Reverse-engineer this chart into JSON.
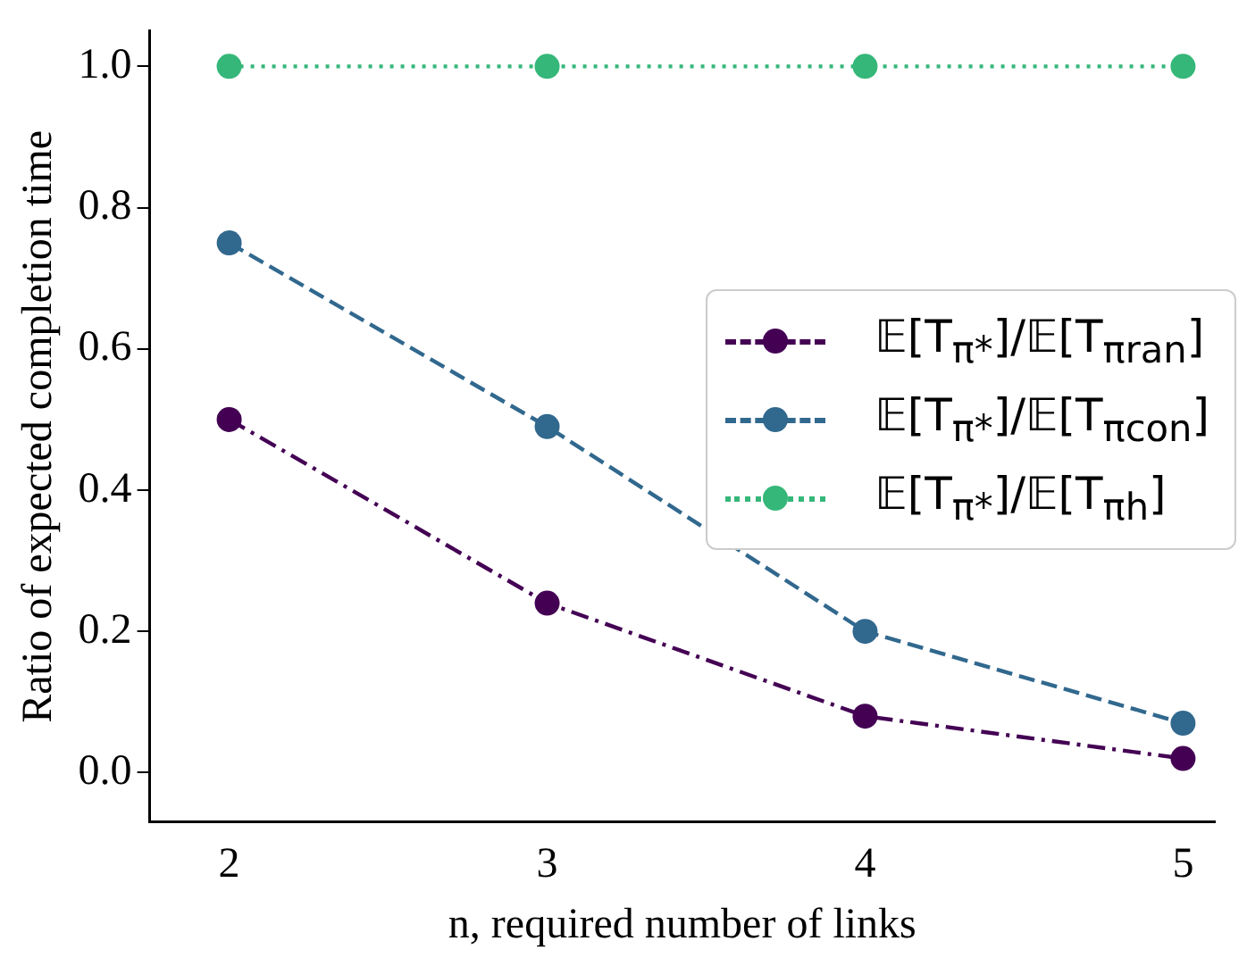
{
  "chart_data": {
    "type": "line",
    "xlabel": "n, required number of links",
    "ylabel": "Ratio of expected completion time",
    "x": [
      2,
      3,
      4,
      5
    ],
    "xlim": [
      1.75,
      5.1
    ],
    "xticks": [
      2,
      3,
      4,
      5
    ],
    "ylim": [
      -0.07,
      1.05
    ],
    "yticks": [
      {
        "value": 0,
        "label": "0.0"
      },
      0.2,
      0.4,
      0.6,
      0.8,
      {
        "value": 1,
        "label": "1.0"
      }
    ],
    "grid": false,
    "legend": "right",
    "marker": "circle",
    "series": [
      {
        "name": "𝔼[T$_{π*}$]/𝔼[T$_{πran}$]",
        "color": "#440154",
        "line_style": "dashdot",
        "values": [
          0.5,
          0.24,
          0.08,
          0.02
        ]
      },
      {
        "name": "𝔼[T$_{π*}$]/𝔼[T$_{πcon}$]",
        "color": "#31688e",
        "line_style": "dashed",
        "values": [
          0.75,
          0.49,
          0.2,
          0.07
        ]
      },
      {
        "name": "𝔼[T$_{π*}$]/𝔼[T$_{πh}$]",
        "color": "#35b779",
        "line_style": "dotted",
        "values": [
          1.0,
          1.0,
          1.0,
          1.0
        ]
      }
    ]
  }
}
